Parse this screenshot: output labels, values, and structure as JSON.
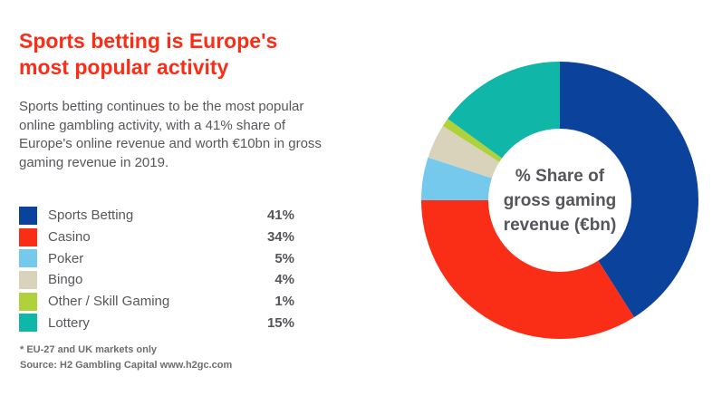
{
  "header": {
    "title_lines": [
      "Sports betting is Europe's",
      "most popular activity"
    ],
    "title_full": "Sports betting is Europe's most popular activity",
    "title_color": "#FA2D17"
  },
  "intro": {
    "text": "Sports betting continues to be the most popular online gambling activity, with a 41% share of Europe's online revenue and worth €10bn in gross gaming revenue in 2019."
  },
  "footer": {
    "note": "* EU-27 and UK markets only",
    "source": "Source: H2 Gambling Capital www.h2gc.com"
  },
  "colors": {
    "accent_red": "#FA2D17",
    "text_gray": "#57585C",
    "footnote_gray": "#6D6E71"
  },
  "chart_data": {
    "type": "pie",
    "donut": true,
    "start_angle": "12 o'clock",
    "direction": "clockwise",
    "units": "percent",
    "total": 100,
    "title": "% Share of gross gaming revenue (€bn)",
    "center_label_lines": [
      "% Share of",
      "gross gaming",
      "revenue (€bn)"
    ],
    "legend_position": "left",
    "series": [
      {
        "label": "Sports Betting",
        "value": 41,
        "pct_label": "41%",
        "color": "#0B429C"
      },
      {
        "label": "Casino",
        "value": 34,
        "pct_label": "34%",
        "color": "#FA2D17"
      },
      {
        "label": "Poker",
        "value": 5,
        "pct_label": "5%",
        "color": "#74C9EC"
      },
      {
        "label": "Bingo",
        "value": 4,
        "pct_label": "4%",
        "color": "#D9D3BC"
      },
      {
        "label": "Other / Skill Gaming",
        "value": 1,
        "pct_label": "1%",
        "color": "#AFD13C"
      },
      {
        "label": "Lottery",
        "value": 15,
        "pct_label": "15%",
        "color": "#10B6A7"
      }
    ]
  }
}
